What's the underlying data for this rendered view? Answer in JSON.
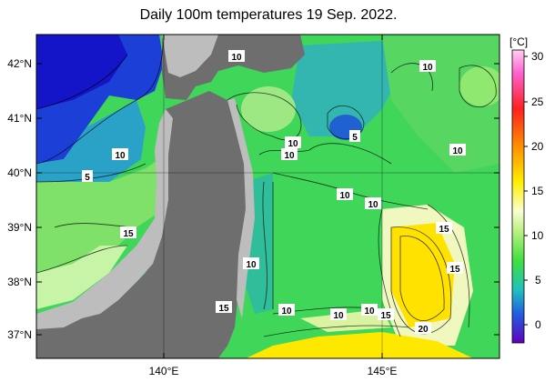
{
  "title": "Daily 100m temperatures 19 Sep. 2022.",
  "map": {
    "lat_ticks": [
      "42°N",
      "41°N",
      "40°N",
      "39°N",
      "38°N",
      "37°N"
    ],
    "lon_ticks": [
      "140°E",
      "145°E"
    ],
    "contour_labels": [
      "10",
      "10",
      "5",
      "10",
      "10",
      "10",
      "5",
      "10",
      "10",
      "10",
      "15",
      "10",
      "15",
      "15",
      "15",
      "10",
      "10",
      "10",
      "15",
      "20"
    ]
  },
  "colorbar": {
    "unit": "[°C]",
    "ticks": [
      "30",
      "25",
      "20",
      "15",
      "10",
      "5",
      "0"
    ]
  },
  "colors": {
    "land": "#6e6e6e",
    "coast_gray": "#bdbdbd",
    "cold": "#1a1ad0",
    "mid": "#33dd55",
    "warm": "#ffe000"
  }
}
